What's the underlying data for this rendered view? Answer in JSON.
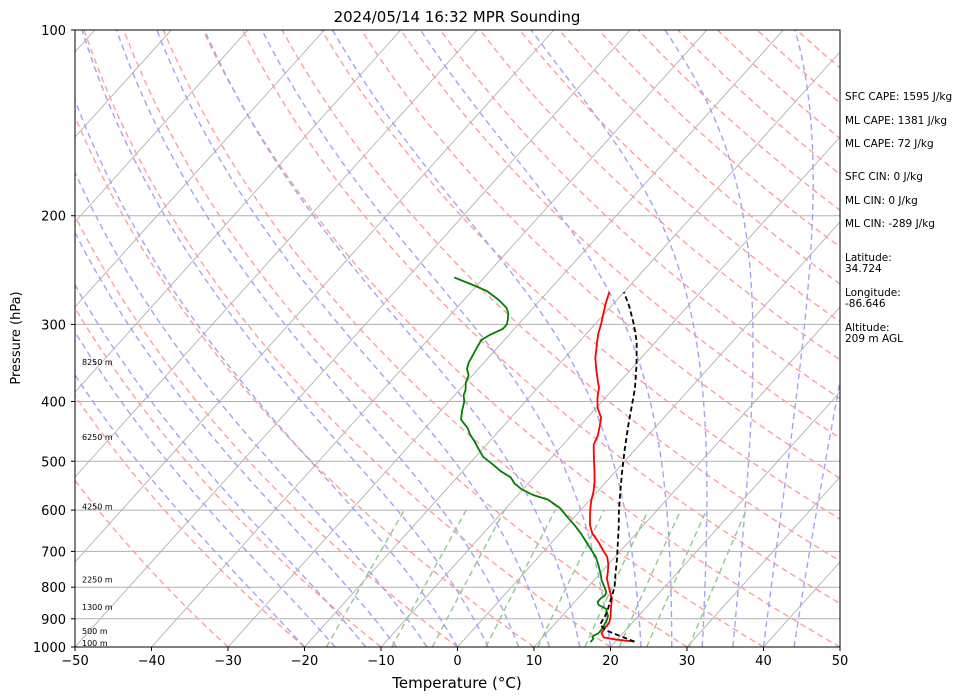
{
  "chart_data": {
    "type": "line",
    "title": "2024/05/14 16:32 MPR Sounding",
    "xlabel": "Temperature (°C)",
    "ylabel": "Pressure (hPa)",
    "xlim": [
      -50,
      50
    ],
    "ylim": [
      1000,
      100
    ],
    "y_scale": "log",
    "grid": true,
    "x_ticks": [
      "−50",
      "−40",
      "−30",
      "−20",
      "−10",
      "0",
      "10",
      "20",
      "30",
      "40",
      "50"
    ],
    "x_tick_values": [
      -50,
      -40,
      -30,
      -20,
      -10,
      0,
      10,
      20,
      30,
      40,
      50
    ],
    "y_ticks": [
      "100",
      "200",
      "300",
      "400",
      "500",
      "600",
      "700",
      "800",
      "900",
      "1000"
    ],
    "y_tick_values": [
      100,
      200,
      300,
      400,
      500,
      600,
      700,
      800,
      900,
      1000
    ],
    "height_labels": [
      {
        "text": "8250 m",
        "p": 345
      },
      {
        "text": "6250 m",
        "p": 457
      },
      {
        "text": "4250 m",
        "p": 592
      },
      {
        "text": "2250 m",
        "p": 777
      },
      {
        "text": "1300 m",
        "p": 862
      },
      {
        "text": "500 m",
        "p": 942
      },
      {
        "text": "100 m",
        "p": 985
      }
    ],
    "series": [
      {
        "color": "#ff0000",
        "points": [
          [
            22.5,
            980
          ],
          [
            20,
            973
          ],
          [
            18,
            965
          ],
          [
            17.2,
            950
          ],
          [
            17,
            930
          ],
          [
            17,
            915
          ],
          [
            16.5,
            895
          ],
          [
            16,
            880
          ],
          [
            15.5,
            865
          ],
          [
            15,
            850
          ],
          [
            14.5,
            835
          ],
          [
            13.5,
            815
          ],
          [
            12.5,
            795
          ],
          [
            11.5,
            775
          ],
          [
            10.8,
            755
          ],
          [
            10,
            735
          ],
          [
            9,
            715
          ],
          [
            7.5,
            695
          ],
          [
            6,
            675
          ],
          [
            4.3,
            655
          ],
          [
            3,
            635
          ],
          [
            2,
            615
          ],
          [
            1,
            595
          ],
          [
            0.3,
            580
          ],
          [
            -0.5,
            560
          ],
          [
            -1.5,
            540
          ],
          [
            -2.7,
            520
          ],
          [
            -3.8,
            503
          ],
          [
            -5,
            485
          ],
          [
            -6,
            470
          ],
          [
            -6.5,
            455
          ],
          [
            -7.3,
            440
          ],
          [
            -8.2,
            425
          ],
          [
            -9.8,
            410
          ],
          [
            -11,
            395
          ],
          [
            -12,
            380
          ],
          [
            -13,
            370
          ],
          [
            -14.5,
            355
          ],
          [
            -16,
            340
          ],
          [
            -16.8,
            330
          ],
          [
            -17.5,
            322
          ],
          [
            -18.5,
            310
          ],
          [
            -19.2,
            300
          ],
          [
            -20,
            290
          ],
          [
            -21,
            278
          ],
          [
            -21.6,
            270
          ],
          [
            -21.9,
            266
          ]
        ]
      },
      {
        "color": "#008000",
        "points": [
          [
            16.8,
            982
          ],
          [
            16.8,
            970
          ],
          [
            16.4,
            962
          ],
          [
            16.6,
            955
          ],
          [
            16.8,
            950
          ],
          [
            16.8,
            940
          ],
          [
            16.7,
            928
          ],
          [
            16.5,
            915
          ],
          [
            16.3,
            902
          ],
          [
            16,
            890
          ],
          [
            15.5,
            880
          ],
          [
            15,
            868
          ],
          [
            13.5,
            855
          ],
          [
            13,
            845
          ],
          [
            13,
            835
          ],
          [
            13.2,
            825
          ],
          [
            13,
            815
          ],
          [
            12.2,
            800
          ],
          [
            11,
            780
          ],
          [
            10.3,
            765
          ],
          [
            9.5,
            750
          ],
          [
            8.7,
            735
          ],
          [
            7.5,
            715
          ],
          [
            6,
            695
          ],
          [
            4.5,
            676
          ],
          [
            2.8,
            655
          ],
          [
            1,
            635
          ],
          [
            -1,
            615
          ],
          [
            -3,
            595
          ],
          [
            -5.5,
            577
          ],
          [
            -8,
            567
          ],
          [
            -10.2,
            555
          ],
          [
            -11.8,
            543
          ],
          [
            -13,
            531
          ],
          [
            -15,
            519
          ],
          [
            -17,
            505
          ],
          [
            -19,
            492
          ],
          [
            -20.5,
            478
          ],
          [
            -22,
            464
          ],
          [
            -23.3,
            453
          ],
          [
            -24.4,
            442
          ],
          [
            -26.3,
            428
          ],
          [
            -27.2,
            414
          ],
          [
            -28,
            400
          ],
          [
            -28.8,
            391
          ],
          [
            -29.2,
            383
          ],
          [
            -30,
            373
          ],
          [
            -30.5,
            363
          ],
          [
            -31.5,
            354
          ],
          [
            -32,
            346
          ],
          [
            -32.3,
            337
          ],
          [
            -32.7,
            327
          ],
          [
            -33,
            318
          ],
          [
            -32.5,
            312
          ],
          [
            -31.5,
            305
          ],
          [
            -31.5,
            300
          ],
          [
            -32,
            294
          ],
          [
            -32.6,
            288
          ],
          [
            -33.5,
            282
          ],
          [
            -35.4,
            274
          ],
          [
            -38,
            265
          ],
          [
            -41,
            258
          ],
          [
            -43.8,
            252
          ],
          [
            -43.8,
            252.5
          ]
        ]
      },
      {
        "color": "#000000",
        "dashed": true,
        "points": [
          [
            22.5,
            980
          ],
          [
            20,
            960
          ],
          [
            17.5,
            940
          ],
          [
            16,
            920
          ],
          [
            15.5,
            880
          ],
          [
            14.5,
            840
          ],
          [
            13.5,
            800
          ],
          [
            12,
            760
          ],
          [
            10.5,
            720
          ],
          [
            8.8,
            680
          ],
          [
            7,
            640
          ],
          [
            5,
            600
          ],
          [
            3,
            560
          ],
          [
            0.9,
            520
          ],
          [
            -1.3,
            480
          ],
          [
            -3.6,
            440
          ],
          [
            -6,
            400
          ],
          [
            -7.3,
            380
          ],
          [
            -9.7,
            350
          ],
          [
            -12.5,
            320
          ],
          [
            -14.9,
            300
          ],
          [
            -17.7,
            280
          ],
          [
            -20,
            266
          ]
        ]
      }
    ],
    "annotations": [
      "SFC CAPE: 1595 J/kg",
      "ML CAPE: 1381 J/kg",
      "ML CAPE: 72 J/kg",
      "SFC CIN: 0 J/kg",
      "ML CIN: 0 J/kg",
      "ML CIN: -289 J/kg",
      "Latitude:",
      "34.724",
      "Longitude:",
      "-86.646",
      "Altitude:",
      "209 m AGL"
    ],
    "background_lines": {
      "isotherms_color": "#b0b0b0",
      "isobars_color": "#b0b0b0",
      "dry_adiabats_color": "#ff9e9e",
      "moist_adiabats_color": "#a9a0f0",
      "mixing_ratio_color": "#8fc98f"
    }
  }
}
